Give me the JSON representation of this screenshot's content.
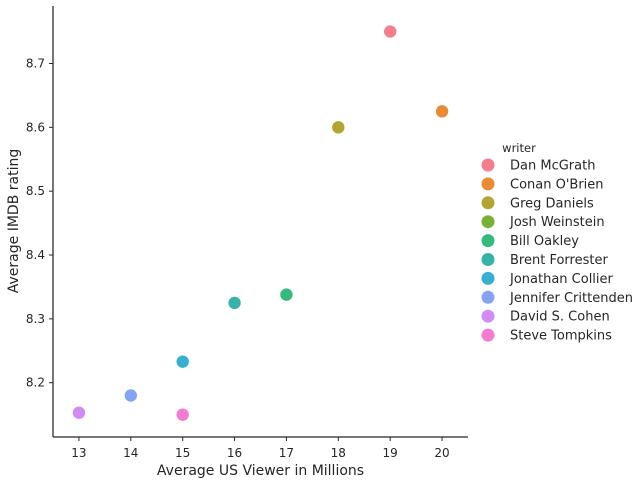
{
  "chart_data": {
    "type": "scatter",
    "xlabel": "Average US Viewer in Millions",
    "ylabel": "Average IMDB rating",
    "xlim": [
      12.5,
      20.5
    ],
    "ylim": [
      8.115,
      8.79
    ],
    "xticks": [
      13,
      14,
      15,
      16,
      17,
      18,
      19,
      20
    ],
    "yticks": [
      8.2,
      8.3,
      8.4,
      8.5,
      8.6,
      8.7
    ],
    "xtick_labels": [
      "13",
      "14",
      "15",
      "16",
      "17",
      "18",
      "19",
      "20"
    ],
    "ytick_labels": [
      "8.2",
      "8.3",
      "8.4",
      "8.5",
      "8.6",
      "8.7"
    ],
    "grid": false,
    "legend": {
      "title": "writer",
      "placement": "right"
    },
    "series": [
      {
        "name": "Dan McGrath",
        "color": "#f37e8e",
        "points": [
          {
            "x": 19,
            "y": 8.75
          }
        ]
      },
      {
        "name": "Conan O'Brien",
        "color": "#eb8a35",
        "points": [
          {
            "x": 20,
            "y": 8.625
          }
        ]
      },
      {
        "name": "Greg Daniels",
        "color": "#b3a532",
        "points": [
          {
            "x": 18,
            "y": 8.6
          }
        ]
      },
      {
        "name": "Josh Weinstein",
        "color": "#78b033",
        "points": []
      },
      {
        "name": "Bill Oakley",
        "color": "#35b97c",
        "points": [
          {
            "x": 17,
            "y": 8.338
          }
        ]
      },
      {
        "name": "Brent Forrester",
        "color": "#36b3a8",
        "points": [
          {
            "x": 16,
            "y": 8.325
          }
        ]
      },
      {
        "name": "Jonathan Collier",
        "color": "#38aed0",
        "points": [
          {
            "x": 15,
            "y": 8.233
          }
        ]
      },
      {
        "name": "Jennifer Crittenden",
        "color": "#85a3f3",
        "points": [
          {
            "x": 14,
            "y": 8.18
          }
        ]
      },
      {
        "name": "David S. Cohen",
        "color": "#d08cf2",
        "points": [
          {
            "x": 13,
            "y": 8.153
          }
        ]
      },
      {
        "name": "Steve Tompkins",
        "color": "#f57ad1",
        "points": [
          {
            "x": 15,
            "y": 8.15
          }
        ]
      }
    ]
  }
}
